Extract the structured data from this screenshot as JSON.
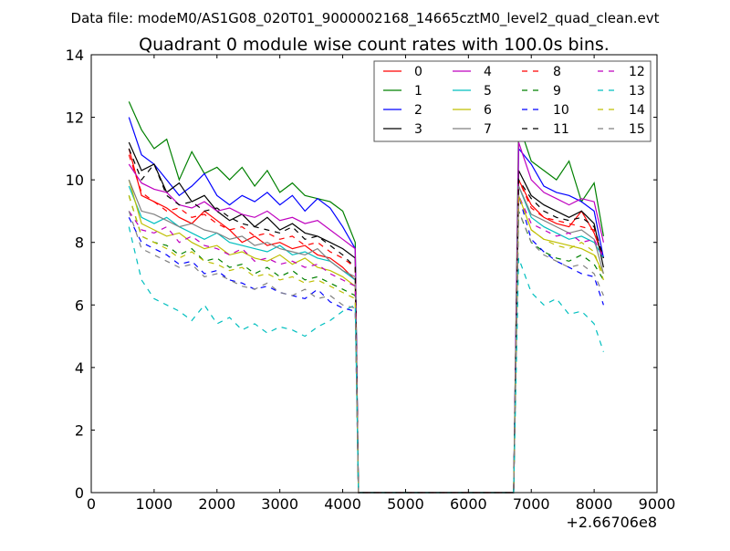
{
  "chart_data": {
    "type": "line",
    "suptitle": "Data file: modeM0/AS1G08_020T01_9000002168_14665cztM0_level2_quad_clean.evt",
    "title": "Quadrant 0 module wise count rates with 100.0s bins.",
    "xlabel": "",
    "ylabel": "",
    "x_offset_label": "+2.66706e8",
    "xlim": [
      0,
      9000
    ],
    "ylim": [
      0,
      14
    ],
    "xticks": [
      "0",
      "1000",
      "2000",
      "3000",
      "4000",
      "5000",
      "6000",
      "7000",
      "8000",
      "9000"
    ],
    "yticks": [
      "0",
      "2",
      "4",
      "6",
      "8",
      "10",
      "12",
      "14"
    ],
    "grid": false,
    "legend_placement": "top-right",
    "x": [
      600,
      800,
      1000,
      1200,
      1400,
      1600,
      1800,
      2000,
      2200,
      2400,
      2600,
      2800,
      3000,
      3200,
      3400,
      3600,
      3800,
      4000,
      4200,
      4250,
      6720,
      6800,
      7000,
      7200,
      7400,
      7600,
      7800,
      8000,
      8150
    ],
    "series": [
      {
        "name": "0",
        "color": "#ff0000",
        "style": "solid",
        "values": [
          11.0,
          9.5,
          9.3,
          9.1,
          8.8,
          8.6,
          9.0,
          8.7,
          8.4,
          8.0,
          8.2,
          7.9,
          8.0,
          7.8,
          7.9,
          7.6,
          7.5,
          7.2,
          6.8,
          0,
          0,
          10.0,
          9.2,
          8.8,
          8.6,
          8.5,
          9.0,
          8.3,
          7.5
        ]
      },
      {
        "name": "1",
        "color": "#008000",
        "style": "solid",
        "values": [
          12.5,
          11.6,
          11.0,
          11.3,
          10.0,
          10.9,
          10.2,
          10.4,
          10.0,
          10.4,
          9.8,
          10.3,
          9.6,
          9.9,
          9.5,
          9.4,
          9.3,
          9.0,
          8.0,
          0,
          0,
          11.8,
          10.6,
          10.3,
          10.0,
          10.6,
          9.3,
          9.9,
          8.2
        ]
      },
      {
        "name": "2",
        "color": "#0000ff",
        "style": "solid",
        "values": [
          12.0,
          10.8,
          10.5,
          10.0,
          9.5,
          9.8,
          10.2,
          9.5,
          9.2,
          9.5,
          9.3,
          9.6,
          9.2,
          9.5,
          9.0,
          9.4,
          9.1,
          8.5,
          7.8,
          0,
          0,
          11.0,
          10.5,
          9.8,
          9.6,
          9.5,
          9.3,
          9.0,
          7.5
        ]
      },
      {
        "name": "3",
        "color": "#000000",
        "style": "solid",
        "values": [
          11.2,
          10.3,
          10.5,
          9.6,
          9.9,
          9.3,
          9.5,
          9.0,
          8.7,
          8.9,
          8.5,
          8.8,
          8.4,
          8.6,
          8.3,
          8.2,
          8.0,
          7.8,
          7.5,
          0,
          0,
          10.3,
          9.5,
          9.2,
          9.0,
          8.8,
          9.0,
          8.6,
          7.2
        ]
      },
      {
        "name": "4",
        "color": "#bf00bf",
        "style": "solid",
        "values": [
          10.5,
          9.9,
          9.7,
          9.6,
          9.2,
          9.1,
          9.3,
          9.0,
          9.1,
          8.9,
          8.8,
          9.0,
          8.7,
          8.8,
          8.6,
          8.7,
          8.4,
          8.1,
          7.8,
          0,
          0,
          11.2,
          10.0,
          9.6,
          9.4,
          9.2,
          9.4,
          9.3,
          8.0
        ]
      },
      {
        "name": "5",
        "color": "#00bfbf",
        "style": "solid",
        "values": [
          9.8,
          8.8,
          8.6,
          8.8,
          8.5,
          8.3,
          8.1,
          8.3,
          8.0,
          7.9,
          7.8,
          7.7,
          7.9,
          7.6,
          7.7,
          7.5,
          7.4,
          7.1,
          6.8,
          0,
          0,
          9.8,
          8.8,
          8.5,
          8.3,
          8.1,
          8.2,
          8.0,
          7.5
        ]
      },
      {
        "name": "6",
        "color": "#bfbf00",
        "style": "solid",
        "values": [
          10.0,
          8.6,
          8.4,
          8.2,
          8.3,
          8.0,
          7.8,
          7.9,
          7.6,
          7.7,
          7.5,
          7.4,
          7.6,
          7.3,
          7.5,
          7.2,
          7.1,
          6.9,
          6.6,
          0,
          0,
          9.5,
          8.4,
          8.1,
          8.0,
          7.9,
          7.8,
          7.6,
          7.0
        ]
      },
      {
        "name": "7",
        "color": "#808080",
        "style": "solid",
        "values": [
          10.0,
          9.0,
          8.9,
          8.7,
          8.5,
          8.6,
          8.4,
          8.3,
          8.1,
          8.2,
          7.9,
          8.0,
          7.8,
          7.7,
          7.6,
          7.8,
          7.4,
          7.1,
          6.9,
          0,
          0,
          9.8,
          8.9,
          8.7,
          8.5,
          8.3,
          8.4,
          8.1,
          7.0
        ]
      },
      {
        "name": "8",
        "color": "#ff0000",
        "style": "dashed",
        "values": [
          10.8,
          9.6,
          9.3,
          9.0,
          9.1,
          8.8,
          8.9,
          8.6,
          8.4,
          8.5,
          8.2,
          8.3,
          8.1,
          8.2,
          7.9,
          8.0,
          7.7,
          7.5,
          7.2,
          0,
          0,
          10.0,
          9.1,
          8.8,
          8.7,
          8.6,
          8.5,
          8.4,
          7.5
        ]
      },
      {
        "name": "9",
        "color": "#008000",
        "style": "dashed",
        "values": [
          9.5,
          8.2,
          8.0,
          7.9,
          7.6,
          7.8,
          7.4,
          7.5,
          7.2,
          7.3,
          7.0,
          7.2,
          6.9,
          7.1,
          6.8,
          6.9,
          6.7,
          6.5,
          6.3,
          0,
          0,
          9.0,
          8.0,
          7.7,
          7.5,
          7.4,
          7.6,
          7.3,
          6.8
        ]
      },
      {
        "name": "10",
        "color": "#0000ff",
        "style": "dashed",
        "values": [
          8.8,
          8.0,
          7.8,
          7.6,
          7.3,
          7.4,
          7.0,
          7.1,
          6.8,
          6.7,
          6.5,
          6.6,
          6.4,
          6.3,
          6.2,
          6.5,
          6.1,
          5.9,
          5.8,
          0,
          0,
          9.5,
          8.1,
          7.7,
          7.4,
          7.2,
          7.0,
          6.9,
          6.0
        ]
      },
      {
        "name": "11",
        "color": "#000000",
        "style": "dashed",
        "values": [
          11.0,
          10.0,
          10.5,
          9.5,
          9.2,
          9.3,
          9.0,
          9.1,
          8.8,
          8.6,
          8.5,
          8.4,
          8.3,
          8.5,
          8.1,
          8.2,
          7.9,
          7.6,
          7.2,
          0,
          0,
          10.0,
          9.4,
          9.0,
          8.8,
          8.7,
          8.8,
          8.5,
          7.5
        ]
      },
      {
        "name": "12",
        "color": "#bf00bf",
        "style": "dashed",
        "values": [
          9.0,
          8.4,
          8.3,
          8.5,
          8.0,
          8.2,
          7.9,
          7.8,
          7.6,
          7.8,
          7.4,
          7.5,
          7.3,
          7.4,
          7.2,
          7.3,
          7.0,
          6.8,
          6.6,
          0,
          0,
          9.5,
          8.6,
          8.4,
          8.2,
          8.3,
          8.0,
          8.1,
          7.5
        ]
      },
      {
        "name": "13",
        "color": "#00bfbf",
        "style": "dashed",
        "values": [
          8.5,
          6.8,
          6.2,
          6.0,
          5.8,
          5.5,
          6.0,
          5.4,
          5.6,
          5.2,
          5.4,
          5.1,
          5.3,
          5.2,
          5.0,
          5.3,
          5.5,
          5.8,
          6.0,
          0,
          0,
          7.5,
          6.4,
          6.0,
          6.2,
          5.7,
          5.8,
          5.4,
          4.5
        ]
      },
      {
        "name": "14",
        "color": "#bfbf00",
        "style": "dashed",
        "values": [
          9.5,
          8.2,
          8.0,
          7.8,
          7.5,
          7.7,
          7.4,
          7.3,
          7.1,
          7.2,
          6.9,
          7.0,
          6.8,
          6.9,
          6.7,
          6.8,
          6.6,
          6.4,
          6.2,
          0,
          0,
          9.5,
          8.4,
          8.1,
          7.9,
          7.8,
          8.0,
          7.7,
          6.8
        ]
      },
      {
        "name": "15",
        "color": "#808080",
        "style": "dashed",
        "values": [
          9.0,
          7.8,
          7.6,
          7.4,
          7.2,
          7.3,
          6.9,
          7.0,
          6.8,
          6.6,
          6.5,
          6.7,
          6.4,
          6.3,
          6.5,
          6.2,
          6.3,
          6.0,
          5.9,
          0,
          0,
          9.0,
          8.0,
          7.6,
          7.4,
          7.2,
          7.3,
          7.0,
          6.3
        ]
      }
    ]
  }
}
